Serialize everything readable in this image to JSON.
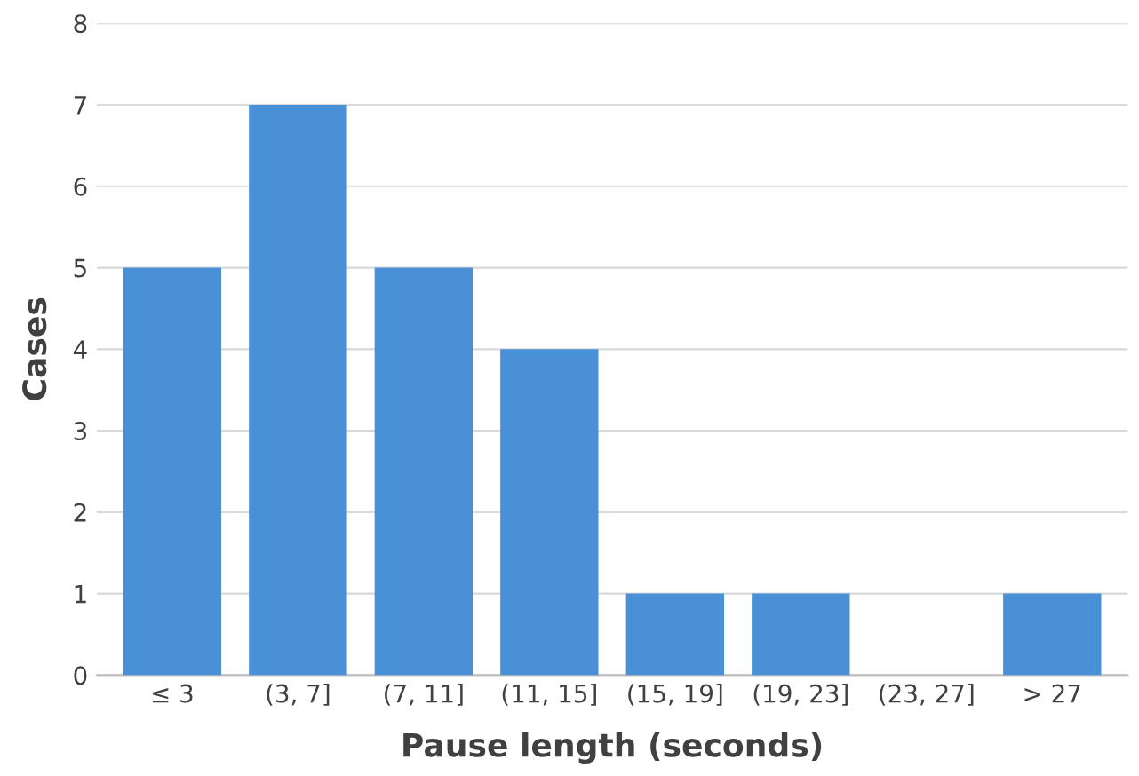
{
  "chart_data": {
    "type": "bar",
    "xlabel": "Pause length (seconds)",
    "ylabel": "Cases",
    "categories": [
      "≤ 3",
      "(3, 7]",
      "(7, 11]",
      "(11, 15]",
      "(15, 19]",
      "(19, 23]",
      "(23, 27]",
      "> 27"
    ],
    "values": [
      5,
      7,
      5,
      4,
      1,
      1,
      0,
      1
    ],
    "color": "#4a90d6",
    "ylim": [
      0,
      8
    ],
    "yticks": [
      0,
      1,
      2,
      3,
      4,
      5,
      6,
      7,
      8
    ],
    "grid": "y"
  }
}
